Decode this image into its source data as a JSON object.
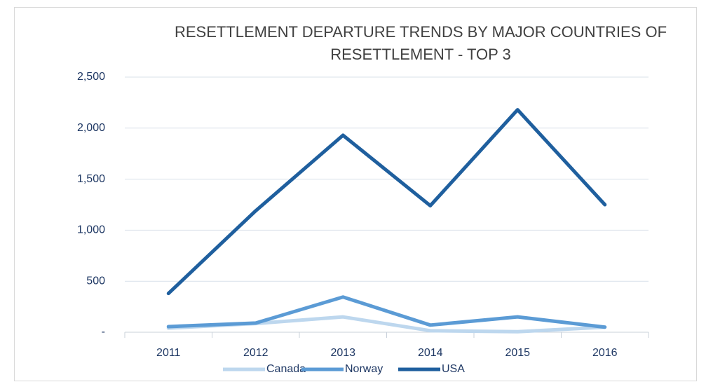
{
  "chart_data": {
    "type": "line",
    "title": "RESETTLEMENT DEPARTURE TRENDS BY MAJOR COUNTRIES OF RESETTLEMENT - TOP 3",
    "categories": [
      "2011",
      "2012",
      "2013",
      "2014",
      "2015",
      "2016"
    ],
    "series": [
      {
        "name": "Canada",
        "color": "#bdd7ee",
        "values": [
          40,
          85,
          150,
          15,
          5,
          50
        ]
      },
      {
        "name": "Norway",
        "color": "#5b9bd5",
        "values": [
          55,
          90,
          345,
          70,
          150,
          50
        ]
      },
      {
        "name": "USA",
        "color": "#1f5f9e",
        "values": [
          380,
          1190,
          1930,
          1240,
          2180,
          1250
        ]
      }
    ],
    "ylim": [
      0,
      2500
    ],
    "yticks": [
      {
        "value": 0,
        "label": "-"
      },
      500,
      {
        "value": 1000,
        "label": "1,000"
      },
      {
        "value": 1500,
        "label": "1,500"
      },
      {
        "value": 2000,
        "label": "2,000"
      },
      {
        "value": 2500,
        "label": "2,500"
      }
    ],
    "grid": true,
    "legend": "bottom"
  }
}
